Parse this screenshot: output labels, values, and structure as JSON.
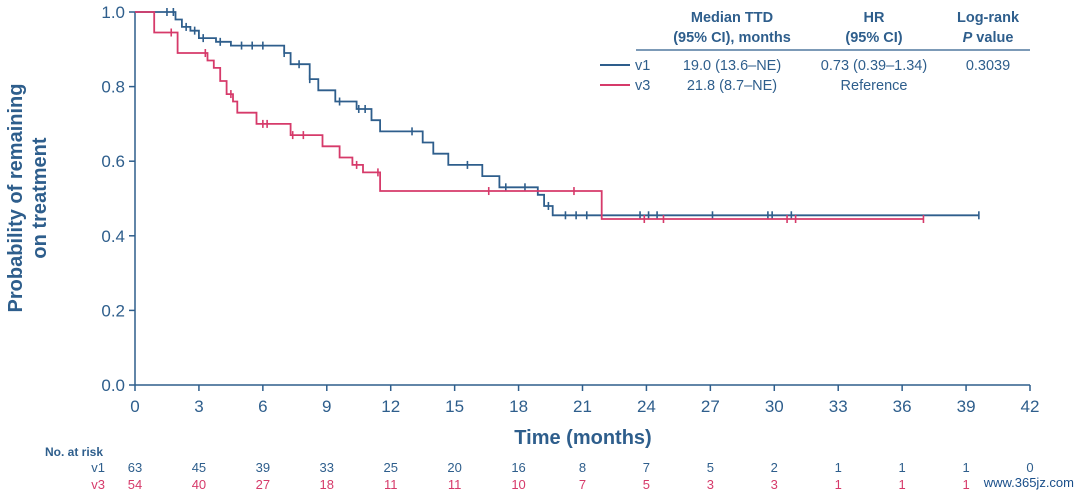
{
  "chart_data": {
    "type": "line",
    "subtype": "kaplan-meier step",
    "xlabel": "Time (months)",
    "ylabel_lines": [
      "Probability of remaining",
      "on treatment"
    ],
    "xlim": [
      0,
      42
    ],
    "ylim": [
      0,
      1.0
    ],
    "xticks": [
      0,
      3,
      6,
      9,
      12,
      15,
      18,
      21,
      24,
      27,
      30,
      33,
      36,
      39,
      42
    ],
    "xtick_labels": [
      "0",
      "3",
      "6",
      "9",
      "12",
      "15",
      "18",
      "21",
      "24",
      "27",
      "30",
      "33",
      "36",
      "39",
      "42"
    ],
    "yticks": [
      0,
      0.2,
      0.4,
      0.6,
      0.8,
      1.0
    ],
    "ytick_labels": [
      "0.0",
      "0.2",
      "0.4",
      "0.6",
      "0.8",
      "1.0"
    ],
    "grid": false,
    "legend_position": "top-right",
    "series": [
      {
        "name": "v1",
        "color": "#2e5e8c",
        "steps": [
          [
            0,
            1.0
          ],
          [
            1.9,
            0.98
          ],
          [
            2.2,
            0.96
          ],
          [
            2.6,
            0.95
          ],
          [
            3.0,
            0.93
          ],
          [
            3.8,
            0.92
          ],
          [
            4.5,
            0.91
          ],
          [
            7.0,
            0.89
          ],
          [
            7.3,
            0.86
          ],
          [
            8.2,
            0.82
          ],
          [
            8.6,
            0.79
          ],
          [
            9.4,
            0.76
          ],
          [
            10.4,
            0.74
          ],
          [
            11.1,
            0.71
          ],
          [
            11.5,
            0.68
          ],
          [
            13.5,
            0.65
          ],
          [
            14.0,
            0.62
          ],
          [
            14.7,
            0.59
          ],
          [
            16.3,
            0.56
          ],
          [
            17.1,
            0.53
          ],
          [
            18.9,
            0.51
          ],
          [
            19.2,
            0.48
          ],
          [
            19.6,
            0.455
          ],
          [
            39.6,
            0.455
          ]
        ],
        "censor_x": [
          1.5,
          1.8,
          2.4,
          2.8,
          3.2,
          4.0,
          5.0,
          5.5,
          6.0,
          7.0,
          7.7,
          8.2,
          9.6,
          10.5,
          10.8,
          13.0,
          15.6,
          17.4,
          18.3,
          19.4,
          20.2,
          20.7,
          21.2,
          23.7,
          24.1,
          24.5,
          27.1,
          29.7,
          29.9,
          30.8,
          39.6
        ],
        "median": "19.0 (13.6–NE)",
        "hr": "0.73 (0.39–1.34)",
        "p_value": "0.3039",
        "at_risk": [
          "63",
          "45",
          "39",
          "33",
          "25",
          "20",
          "16",
          "8",
          "7",
          "5",
          "2",
          "1",
          "1",
          "1",
          "0"
        ]
      },
      {
        "name": "v3",
        "color": "#d63a6a",
        "steps": [
          [
            0,
            1.0
          ],
          [
            0.9,
            0.945
          ],
          [
            2.0,
            0.89
          ],
          [
            3.4,
            0.87
          ],
          [
            3.7,
            0.85
          ],
          [
            4.0,
            0.815
          ],
          [
            4.3,
            0.78
          ],
          [
            4.6,
            0.76
          ],
          [
            4.8,
            0.73
          ],
          [
            5.7,
            0.7
          ],
          [
            7.3,
            0.67
          ],
          [
            8.8,
            0.64
          ],
          [
            9.6,
            0.61
          ],
          [
            10.2,
            0.59
          ],
          [
            10.7,
            0.57
          ],
          [
            11.5,
            0.52
          ],
          [
            21.8,
            0.52
          ],
          [
            21.9,
            0.445
          ],
          [
            37.0,
            0.445
          ]
        ],
        "censor_x": [
          1.7,
          3.3,
          4.5,
          6.0,
          6.2,
          7.4,
          7.9,
          10.4,
          11.4,
          16.6,
          20.6,
          23.9,
          24.8,
          30.6,
          31.0,
          37.0
        ],
        "median": "21.8 (8.7–NE)",
        "hr": "Reference",
        "p_value": "",
        "at_risk": [
          "54",
          "40",
          "27",
          "18",
          "11",
          "11",
          "10",
          "7",
          "5",
          "3",
          "3",
          "1",
          "1",
          "1",
          ""
        ]
      }
    ],
    "legend_headers": {
      "median_line1": "Median TTD",
      "median_line2": "(95% CI), months",
      "hr_line1": "HR",
      "hr_line2": "(95% CI)",
      "logrank_line1": "Log-rank",
      "logrank_line2_italic": "P",
      "logrank_line2_rest": " value"
    },
    "risk_table_title": "No. at risk"
  },
  "watermark": "www.365jz.com"
}
